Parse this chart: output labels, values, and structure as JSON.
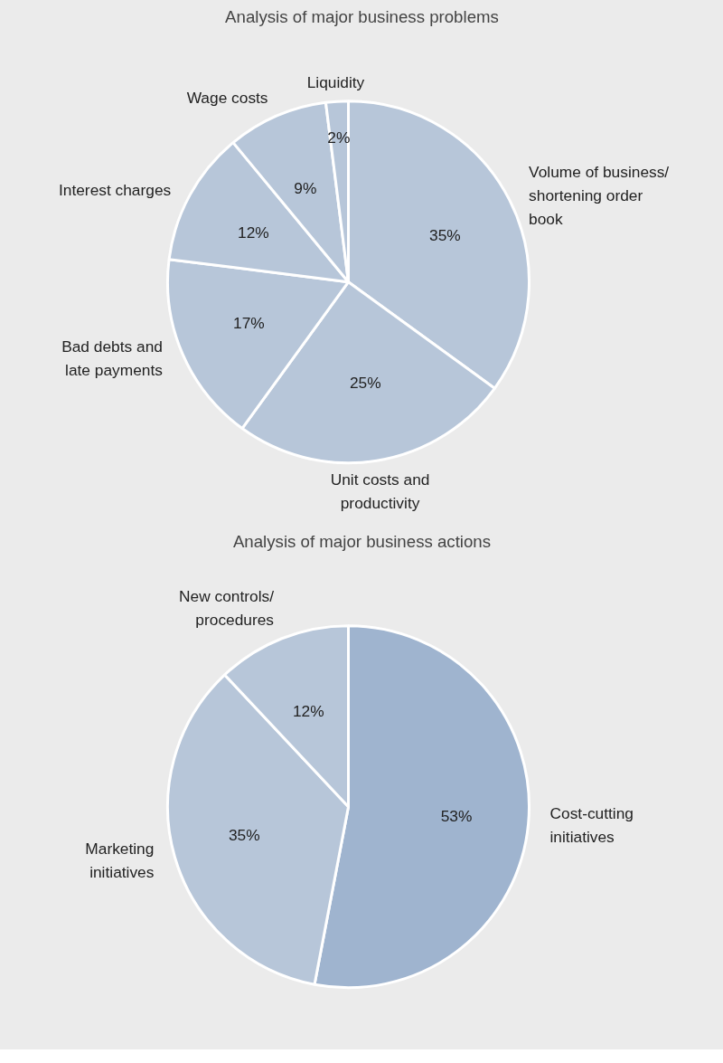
{
  "chart_data": [
    {
      "type": "pie",
      "title": "Analysis of major business problems",
      "categories": [
        "Volume of business/\nshortening order\nbook",
        "Unit costs and\nproductivity",
        "Bad debts and\nlate payments",
        "Interest charges",
        "Wage costs",
        "Liquidity"
      ],
      "values": [
        35,
        25,
        17,
        12,
        9,
        2
      ],
      "colors": [
        "#b7c6d9",
        "#b7c6d9",
        "#b7c6d9",
        "#b7c6d9",
        "#b7c6d9",
        "#b7c6d9"
      ],
      "value_labels": [
        "35%",
        "25%",
        "17%",
        "12%",
        "9%",
        "2%"
      ]
    },
    {
      "type": "pie",
      "title": "Analysis of major business actions",
      "categories": [
        "Cost-cutting\ninitiatives",
        "Marketing\ninitiatives",
        "New controls/\nprocedures"
      ],
      "values": [
        53,
        35,
        12
      ],
      "colors": [
        "#9fb4cf",
        "#b7c6d9",
        "#b7c6d9"
      ],
      "value_labels": [
        "53%",
        "35%",
        "12%"
      ]
    }
  ]
}
